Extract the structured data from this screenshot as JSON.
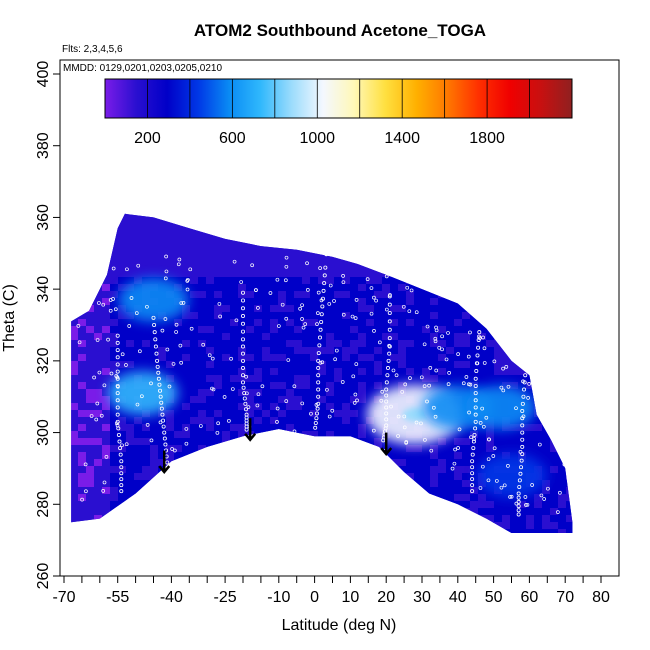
{
  "chart_data": {
    "type": "heatmap",
    "title": "ATOM2 Southbound Acetone_TOGA",
    "flights_note": "Flts: 2,3,4,5,6",
    "dates_note": "MMDD: 0129,0201,0203,0205,0210",
    "xlabel": "Latitude (deg N)",
    "ylabel": "Theta (C)",
    "xlim": [
      -72,
      85
    ],
    "ylim": [
      260,
      402
    ],
    "x_tick_labels": [
      -70,
      -55,
      -40,
      -25,
      -10,
      0,
      10,
      20,
      30,
      40,
      50,
      60,
      70,
      80
    ],
    "x_minor_ticks": [
      -65,
      -60,
      -50,
      -45,
      -35,
      -30,
      -20,
      -15,
      -5,
      5,
      15,
      25,
      35,
      45,
      55,
      65,
      75
    ],
    "y_tick_labels": [
      260,
      280,
      300,
      320,
      340,
      360,
      380,
      400
    ],
    "colorbar": {
      "range": [
        0,
        2200
      ],
      "tick_labels": [
        200,
        600,
        1000,
        1400,
        1800
      ],
      "divisions": [
        200,
        400,
        600,
        800,
        1000,
        1200,
        1400,
        1600,
        1800,
        2000
      ],
      "colors": [
        "#7a1ce8",
        "#2a0fd0",
        "#0000c8",
        "#0038e6",
        "#0a8cf4",
        "#30b8fc",
        "#9cdcfc",
        "#f4f8ff",
        "#fff8b8",
        "#ffe040",
        "#ffb000",
        "#ff7800",
        "#ff3000",
        "#f00000",
        "#c81010",
        "#902020"
      ]
    },
    "field_boundary": {
      "top": [
        [
          -68,
          331
        ],
        [
          -63,
          334
        ],
        [
          -58,
          344
        ],
        [
          -55,
          357
        ],
        [
          -53,
          361
        ],
        [
          -45,
          360
        ],
        [
          -35,
          357
        ],
        [
          -25,
          354
        ],
        [
          -15,
          352
        ],
        [
          -5,
          351
        ],
        [
          5,
          349
        ],
        [
          12,
          347
        ],
        [
          20,
          344
        ],
        [
          30,
          340
        ],
        [
          40,
          336
        ],
        [
          48,
          329
        ],
        [
          55,
          320
        ],
        [
          60,
          316
        ],
        [
          62,
          305
        ],
        [
          66,
          298
        ],
        [
          70,
          290
        ],
        [
          72,
          275
        ]
      ],
      "bottom": [
        [
          -68,
          275
        ],
        [
          -60,
          276
        ],
        [
          -50,
          283
        ],
        [
          -40,
          292
        ],
        [
          -30,
          296
        ],
        [
          -20,
          299
        ],
        [
          -10,
          301
        ],
        [
          0,
          299
        ],
        [
          10,
          299
        ],
        [
          18,
          296
        ],
        [
          25,
          289
        ],
        [
          32,
          283
        ],
        [
          40,
          280
        ],
        [
          48,
          276
        ],
        [
          55,
          272
        ],
        [
          62,
          272
        ],
        [
          72,
          272
        ]
      ]
    },
    "flight_tracks": [
      {
        "name": "sonde-profile-lat-55",
        "points": [
          [
            -55,
            327
          ],
          [
            -55,
            315
          ],
          [
            -55,
            303
          ],
          [
            -54,
            292
          ],
          [
            -54,
            282
          ]
        ]
      },
      {
        "name": "sonde-profile-lat-42",
        "points": [
          [
            -45,
            332
          ],
          [
            -44,
            320
          ],
          [
            -43,
            310
          ],
          [
            -42,
            300
          ],
          [
            -41,
            290
          ]
        ]
      },
      {
        "name": "sonde-profile-lat-20",
        "points": [
          [
            -20,
            339
          ],
          [
            -20,
            326
          ],
          [
            -20,
            314
          ],
          [
            -19,
            305
          ],
          [
            -19,
            300
          ]
        ]
      },
      {
        "name": "sonde-profile-lat-2",
        "points": [
          [
            3,
            346
          ],
          [
            2,
            333
          ],
          [
            1,
            320
          ],
          [
            1,
            308
          ],
          [
            0,
            300
          ]
        ]
      },
      {
        "name": "sonde-profile-lat-20n",
        "points": [
          [
            21,
            338
          ],
          [
            21,
            324
          ],
          [
            20,
            312
          ],
          [
            20,
            302
          ],
          [
            19,
            297
          ]
        ]
      },
      {
        "name": "sonde-profile-lat-45",
        "points": [
          [
            46,
            328
          ],
          [
            45,
            315
          ],
          [
            45,
            303
          ],
          [
            44,
            292
          ],
          [
            44,
            282
          ]
        ]
      },
      {
        "name": "sonde-profile-lat-58",
        "points": [
          [
            59,
            318
          ],
          [
            58,
            306
          ],
          [
            58,
            294
          ],
          [
            57,
            283
          ],
          [
            57,
            276
          ]
        ]
      }
    ],
    "arrows": [
      {
        "name": "arrow-lat-42",
        "lat": -42,
        "theta_top": 295,
        "theta_bottom": 289
      },
      {
        "name": "arrow-lat-18",
        "lat": -18,
        "theta_top": 304,
        "theta_bottom": 298
      },
      {
        "name": "arrow-lat-20",
        "lat": 20,
        "theta_top": 300,
        "theta_bottom": 294
      }
    ],
    "hotspots": [
      {
        "lat": 28,
        "theta": 305,
        "value": 1050
      },
      {
        "lat": -48,
        "theta": 311,
        "value": 700
      },
      {
        "lat": -45,
        "theta": 337,
        "value": 560
      },
      {
        "lat": 40,
        "theta": 307,
        "value": 620
      },
      {
        "lat": 52,
        "theta": 307,
        "value": 520
      },
      {
        "lat": 55,
        "theta": 288,
        "value": 480
      }
    ]
  }
}
